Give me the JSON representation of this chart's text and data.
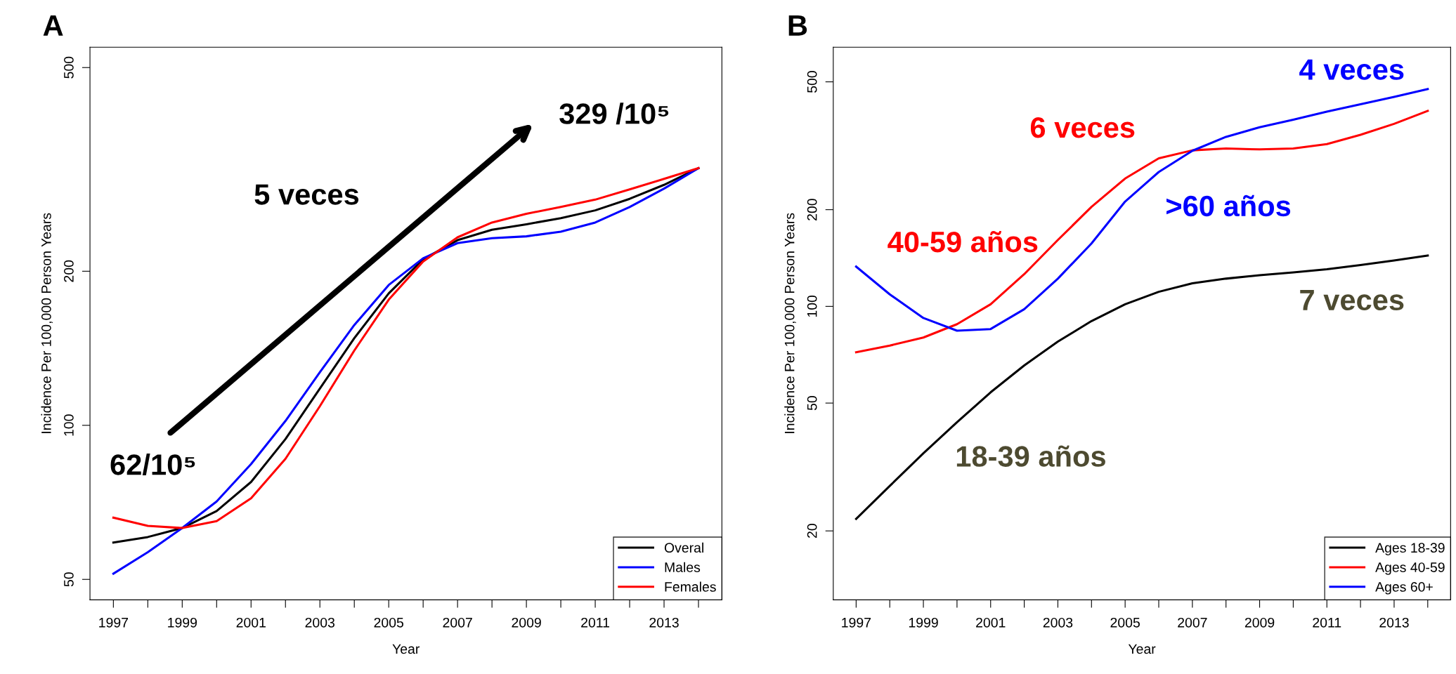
{
  "chart_data": [
    {
      "type": "line",
      "title": "A",
      "xlabel": "Year",
      "ylabel": "Incidence Per 100,000 Person Years",
      "log": "y",
      "legend": "bottom right",
      "grid": false,
      "marker": "none",
      "line_style": "solid",
      "x": [
        1997,
        1998,
        1999,
        2000,
        2001,
        2002,
        2003,
        2004,
        2005,
        2006,
        2007,
        2008,
        2009,
        2010,
        2011,
        2012,
        2013,
        2014
      ],
      "xlim": [
        1996.32,
        2014.68
      ],
      "ylim": [
        45.6,
        548
      ],
      "xticks": [
        1997,
        {
          "value": 1998,
          "label": null
        },
        1999,
        {
          "value": 2000,
          "label": null
        },
        2001,
        {
          "value": 2002,
          "label": null
        },
        2003,
        {
          "value": 2004,
          "label": null
        },
        2005,
        {
          "value": 2006,
          "label": null
        },
        2007,
        {
          "value": 2008,
          "label": null
        },
        2009,
        {
          "value": 2010,
          "label": null
        },
        2011,
        {
          "value": 2012,
          "label": null
        },
        2013,
        {
          "value": 2014,
          "label": null
        }
      ],
      "yticks": [
        50,
        100,
        200,
        500
      ],
      "series": [
        {
          "name": "Overal",
          "color": "#000000",
          "values": [
            59,
            60.5,
            63,
            68,
            77.5,
            94,
            118,
            148,
            181,
            211,
            230,
            241,
            247,
            254,
            263,
            277,
            295,
            318
          ]
        },
        {
          "name": "Males",
          "color": "#0000ff",
          "values": [
            51.3,
            56.5,
            63,
            71,
            84,
            102,
            127,
            157,
            188,
            212,
            227,
            232,
            234,
            239,
            249,
            267,
            290,
            318
          ]
        },
        {
          "name": "Females",
          "color": "#ff0000",
          "values": [
            66,
            63.6,
            63,
            65,
            72,
            86,
            109,
            140,
            176,
            209,
            233,
            249,
            259,
            267,
            276,
            289,
            303,
            318
          ]
        }
      ],
      "annotations": [
        "5 veces",
        "62/10⁵",
        "329 /10⁵"
      ]
    },
    {
      "type": "line",
      "title": "B",
      "xlabel": "Year",
      "ylabel": "Incidence Per 100,000 Person Years",
      "log": "y",
      "legend": "bottom right",
      "grid": false,
      "marker": "none",
      "line_style": "solid",
      "x": [
        1997,
        1998,
        1999,
        2000,
        2001,
        2002,
        2003,
        2004,
        2005,
        2006,
        2007,
        2008,
        2009,
        2010,
        2011,
        2012,
        2013,
        2014
      ],
      "xlim": [
        1996.32,
        2014.68
      ],
      "ylim": [
        12.2,
        641
      ],
      "xticks": [
        1997,
        {
          "value": 1998,
          "label": null
        },
        1999,
        {
          "value": 2000,
          "label": null
        },
        2001,
        {
          "value": 2002,
          "label": null
        },
        2003,
        {
          "value": 2004,
          "label": null
        },
        2005,
        {
          "value": 2006,
          "label": null
        },
        2007,
        {
          "value": 2008,
          "label": null
        },
        2009,
        {
          "value": 2010,
          "label": null
        },
        2011,
        {
          "value": 2012,
          "label": null
        },
        2013,
        {
          "value": 2014,
          "label": null
        }
      ],
      "yticks": [
        20,
        50,
        100,
        200,
        500
      ],
      "series": [
        {
          "name": "Ages 18-39",
          "color": "#000000",
          "values": [
            21.8,
            27.6,
            34.9,
            43.6,
            54,
            65.5,
            77.7,
            90,
            101.5,
            111,
            118,
            122,
            125,
            127.5,
            130.5,
            134.5,
            139,
            144
          ]
        },
        {
          "name": "Ages 40-59",
          "color": "#ff0000",
          "values": [
            72,
            75.5,
            80,
            88,
            101.5,
            126,
            161,
            204,
            250,
            289,
            306,
            310,
            308,
            310,
            320,
            342,
            370,
            406
          ]
        },
        {
          "name": "Ages 60+",
          "color": "#0000ff",
          "values": [
            133,
            109,
            92,
            84,
            85,
            98,
            122,
            157,
            212,
            262,
            305,
            337,
            361,
            381,
            404,
            426,
            449,
            475
          ]
        }
      ],
      "annotations": [
        "6 veces",
        "4 veces",
        "40-59 años",
        ">60 años",
        "18-39 años",
        "7 veces"
      ]
    }
  ]
}
